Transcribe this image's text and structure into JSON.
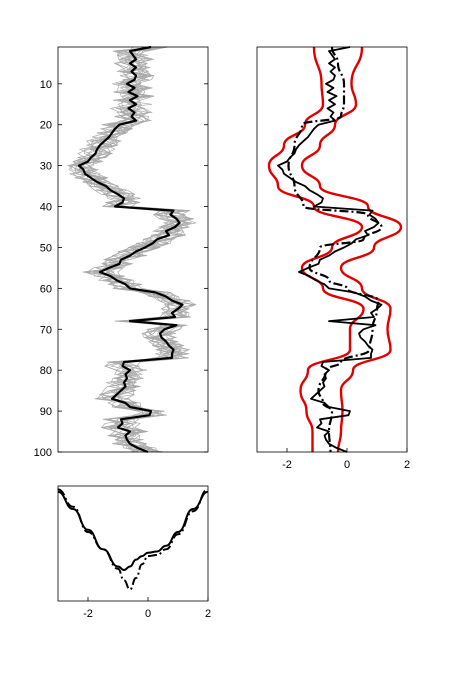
{
  "colors": {
    "black": "#000000",
    "gray": "#a9a9a9",
    "red": "#e00000"
  },
  "chart_data": [
    {
      "type": "line",
      "panel": "left",
      "y_axis": {
        "range": [
          1,
          100
        ],
        "reversed": true,
        "ticks": [
          "10",
          "20",
          "30",
          "40",
          "50",
          "60",
          "70",
          "80",
          "90",
          "100"
        ]
      },
      "x_axis": {
        "range": [
          -3,
          2
        ],
        "ticks": []
      },
      "grid": false,
      "series": [
        {
          "role": "bold trace",
          "color": "#000000",
          "depth": [
            1,
            2,
            3,
            4,
            5,
            6,
            7,
            8,
            9,
            10,
            11,
            12,
            13,
            14,
            15,
            16,
            17,
            18,
            19,
            20,
            21,
            22,
            23,
            24,
            25,
            26,
            27,
            28,
            29,
            30,
            31,
            32,
            33,
            34,
            35,
            36,
            37,
            38,
            39,
            40,
            41,
            42,
            43,
            44,
            45,
            46,
            47,
            48,
            49,
            50,
            51,
            52,
            53,
            54,
            55,
            56,
            57,
            58,
            59,
            60,
            61,
            62,
            63,
            64,
            65,
            66,
            67,
            68,
            69,
            70,
            71,
            72,
            73,
            74,
            75,
            76,
            77,
            78,
            79,
            80,
            81,
            82,
            83,
            84,
            85,
            86,
            87,
            88,
            89,
            90,
            91,
            92,
            93,
            94,
            95,
            96,
            97,
            98,
            99,
            100
          ],
          "value": [
            0.1,
            -0.6,
            -0.5,
            -0.4,
            -0.6,
            -0.4,
            -0.55,
            -0.4,
            -0.45,
            -0.7,
            -0.45,
            -0.65,
            -0.35,
            -0.6,
            -0.4,
            -0.65,
            -0.45,
            -0.55,
            -0.4,
            -0.95,
            -1.1,
            -1.2,
            -1.3,
            -1.45,
            -1.6,
            -1.7,
            -1.75,
            -1.9,
            -2.0,
            -2.3,
            -2.15,
            -2.1,
            -1.9,
            -1.7,
            -1.4,
            -1.25,
            -1.0,
            -0.8,
            -0.85,
            -1.1,
            0.85,
            0.75,
            0.95,
            1.05,
            0.9,
            0.6,
            0.7,
            0.3,
            0.15,
            -0.1,
            -0.4,
            -0.6,
            -0.9,
            -0.95,
            -1.3,
            -1.6,
            -1.25,
            -1.05,
            -0.75,
            -0.6,
            0.25,
            0.6,
            0.8,
            1.15,
            1.0,
            0.8,
            0.9,
            -0.6,
            0.95,
            0.55,
            0.4,
            0.45,
            0.6,
            0.7,
            0.85,
            0.8,
            0.8,
            -0.8,
            -0.85,
            -0.6,
            -0.75,
            -0.7,
            -0.8,
            -0.75,
            -0.9,
            -1.05,
            -1.2,
            -0.75,
            -0.6,
            0.1,
            0.05,
            -0.9,
            -0.85,
            -1.0,
            -0.6,
            -0.75,
            -0.7,
            -0.6,
            -0.35,
            0.0
          ]
        },
        {
          "role": "gray ensemble",
          "color": "#a9a9a9",
          "members": 15,
          "value_spread": 0.6
        }
      ]
    },
    {
      "type": "line",
      "panel": "right",
      "y_axis": {
        "range": [
          1,
          100
        ],
        "reversed": true,
        "ticks": []
      },
      "x_axis": {
        "range": [
          -3,
          2
        ],
        "ticks": [
          "-2",
          "0",
          "2"
        ]
      },
      "grid": false,
      "series": [
        {
          "role": "solid trace",
          "color": "#000000",
          "same_as": "left panel bold trace"
        },
        {
          "role": "dash-dot trace",
          "color": "#000000",
          "depth": [
            1,
            5,
            10,
            15,
            18,
            20,
            25,
            30,
            35,
            40,
            42,
            45,
            48,
            50,
            55,
            58,
            60,
            63,
            65,
            70,
            75,
            78,
            80,
            85,
            88,
            90,
            95,
            100
          ],
          "value": [
            -0.5,
            -0.3,
            -0.1,
            -0.1,
            -0.2,
            -1.5,
            -1.75,
            -1.95,
            -1.75,
            -1.45,
            0.7,
            1.15,
            0.55,
            -0.9,
            -1.25,
            -0.6,
            0.0,
            1.05,
            1.0,
            0.85,
            0.75,
            -0.2,
            -0.7,
            -0.95,
            -0.8,
            -0.5,
            -0.6,
            -0.55
          ]
        },
        {
          "role": "red envelope lower",
          "color": "#e00000",
          "depth": [
            1,
            10,
            15,
            20,
            25,
            30,
            35,
            40,
            45,
            50,
            55,
            60,
            65,
            70,
            75,
            80,
            85,
            90,
            95,
            100
          ],
          "value": [
            -1.1,
            -0.85,
            -0.8,
            -1.4,
            -2.1,
            -2.6,
            -2.3,
            -1.1,
            0.5,
            -0.5,
            -1.5,
            -0.8,
            0.55,
            0.1,
            0.1,
            -1.3,
            -1.55,
            -1.35,
            -1.15,
            -1.15
          ]
        },
        {
          "role": "red envelope upper",
          "color": "#e00000",
          "depth": [
            1,
            10,
            15,
            20,
            25,
            30,
            35,
            40,
            45,
            50,
            55,
            60,
            65,
            70,
            75,
            80,
            85,
            90,
            95,
            100
          ],
          "value": [
            0.5,
            0.15,
            0.3,
            -0.4,
            -0.9,
            -1.5,
            -0.9,
            0.7,
            1.8,
            0.9,
            -0.2,
            0.5,
            1.45,
            1.35,
            1.45,
            0.2,
            -0.2,
            -0.15,
            -0.2,
            -0.3
          ]
        }
      ]
    },
    {
      "type": "line",
      "panel": "bottom",
      "x_axis": {
        "range": [
          -3,
          2
        ],
        "ticks": [
          "-2",
          "0",
          "2"
        ]
      },
      "y_axis": {
        "ticks": []
      },
      "grid": false,
      "series": [
        {
          "role": "solid curve",
          "color": "#000000",
          "x": [
            -3.0,
            -2.5,
            -2.0,
            -1.5,
            -1.0,
            -0.8,
            -0.6,
            -0.4,
            -0.2,
            0.0,
            0.3,
            0.6,
            1.0,
            1.5,
            2.0
          ],
          "y": [
            0.95,
            0.8,
            0.62,
            0.45,
            0.3,
            0.27,
            0.3,
            0.36,
            0.39,
            0.42,
            0.43,
            0.48,
            0.6,
            0.8,
            0.95
          ]
        },
        {
          "role": "dash-dot curve",
          "color": "#000000",
          "x": [
            -3.0,
            -2.5,
            -2.0,
            -1.5,
            -1.0,
            -0.8,
            -0.6,
            -0.4,
            -0.2,
            0.0,
            0.3,
            0.6,
            1.0,
            1.5,
            2.0
          ],
          "y": [
            0.97,
            0.82,
            0.6,
            0.45,
            0.28,
            0.18,
            0.1,
            0.2,
            0.32,
            0.39,
            0.4,
            0.45,
            0.58,
            0.78,
            0.97
          ]
        }
      ]
    }
  ]
}
